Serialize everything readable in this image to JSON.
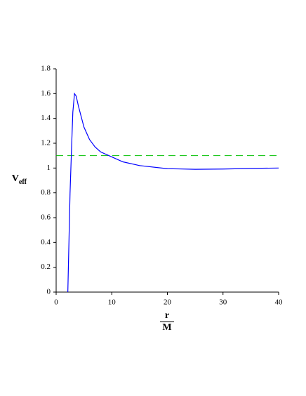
{
  "chart_data": {
    "type": "line",
    "xlabel": {
      "numerator": "r",
      "denominator": "M"
    },
    "ylabel": {
      "main": "V",
      "sub": "eff"
    },
    "xlim": [
      0,
      40
    ],
    "ylim": [
      0,
      1.8
    ],
    "xticks": [
      0,
      10,
      20,
      30,
      40
    ],
    "yticks": [
      0,
      0.2,
      0.4,
      0.6,
      0.8,
      1,
      1.2,
      1.4,
      1.6,
      1.8
    ],
    "x": [
      2.1,
      2.3,
      2.5,
      2.8,
      3.0,
      3.3,
      3.6,
      4,
      5,
      6,
      7,
      8,
      9.5,
      12,
      15,
      20,
      25,
      30,
      35,
      40
    ],
    "series": [
      {
        "color": "#0000ff",
        "values": [
          0,
          0.4,
          0.8,
          1.2,
          1.45,
          1.6,
          1.58,
          1.5,
          1.33,
          1.23,
          1.17,
          1.13,
          1.1,
          1.05,
          1.02,
          0.995,
          0.99,
          0.992,
          0.997,
          1.0
        ]
      }
    ],
    "hline": {
      "value": 1.1,
      "color": "#00c000",
      "dashed": true
    }
  }
}
